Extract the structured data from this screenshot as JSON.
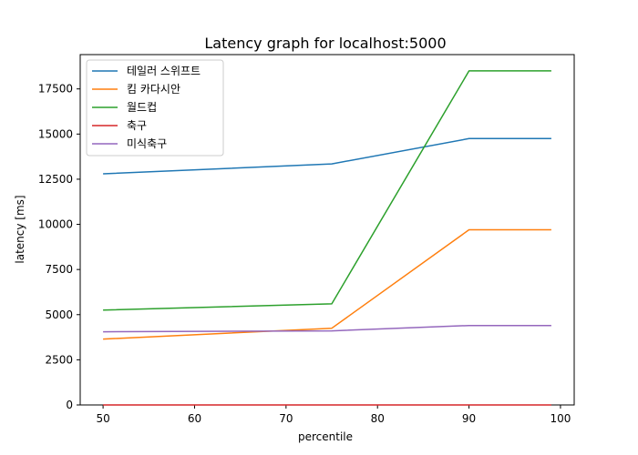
{
  "chart_data": {
    "type": "line",
    "title": "Latency graph for localhost:5000",
    "xlabel": "percentile",
    "ylabel": "latency [ms]",
    "xlim": [
      47.5,
      101.5
    ],
    "ylim": [
      0,
      19400
    ],
    "x_ticks": [
      50,
      60,
      70,
      80,
      90,
      100
    ],
    "y_ticks": [
      0,
      2500,
      5000,
      7500,
      10000,
      12500,
      15000,
      17500
    ],
    "grid": false,
    "legend_position": "top-left",
    "x": [
      50,
      75,
      90,
      99
    ],
    "series": [
      {
        "name": "테일러 스위프트",
        "color": "#1f77b4",
        "values": [
          12800,
          13350,
          14750,
          14750
        ]
      },
      {
        "name": "킴 카다시안",
        "color": "#ff7f0e",
        "values": [
          3650,
          4250,
          9700,
          9700
        ]
      },
      {
        "name": "월드컵",
        "color": "#2ca02c",
        "values": [
          5250,
          5600,
          18500,
          18500
        ]
      },
      {
        "name": "축구",
        "color": "#d62728",
        "values": [
          2,
          2,
          2,
          2
        ]
      },
      {
        "name": "미식축구",
        "color": "#9467bd",
        "values": [
          4050,
          4100,
          4400,
          4400
        ]
      }
    ]
  }
}
